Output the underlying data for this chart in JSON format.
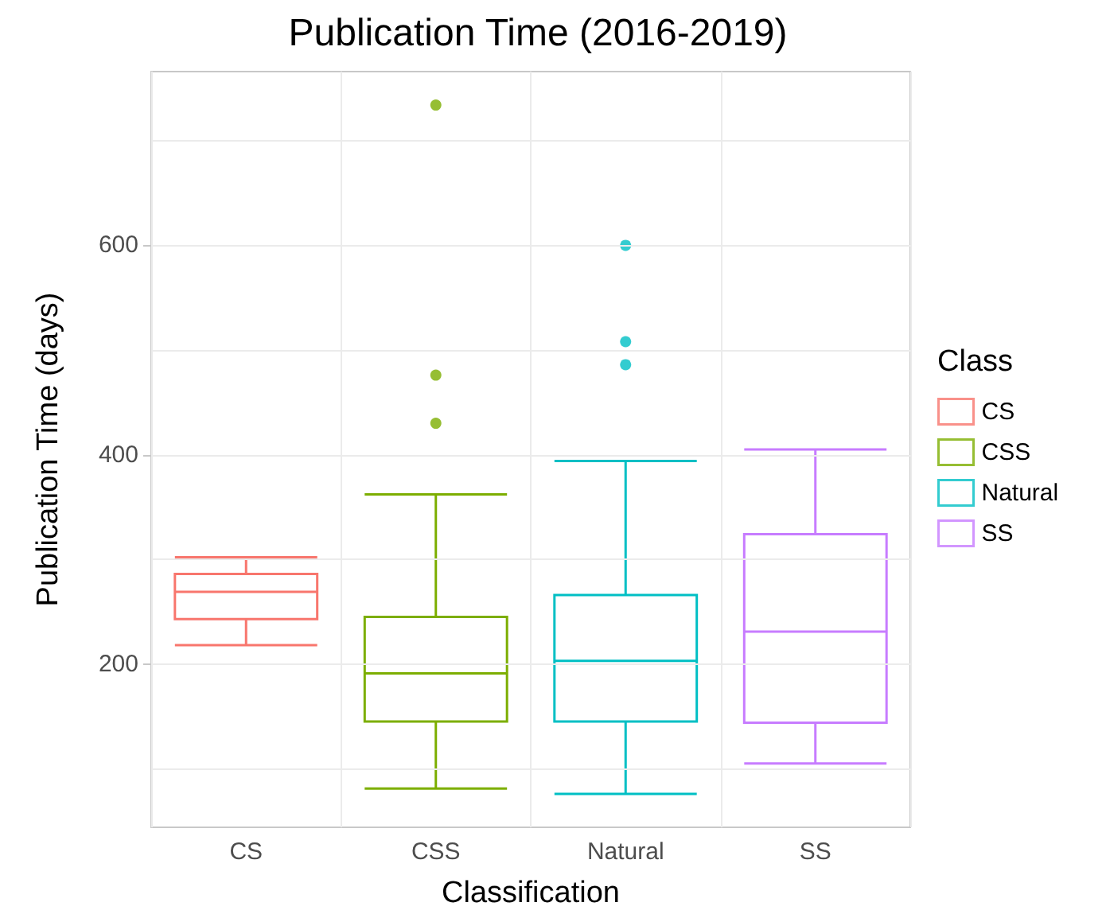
{
  "chart_data": {
    "type": "box",
    "title": "Publication Time (2016-2019)",
    "xlabel": "Classification",
    "ylabel": "Publication Time (days)",
    "legend_title": "Class",
    "categories": [
      "CS",
      "CSS",
      "Natural",
      "SS"
    ],
    "series": [
      {
        "name": "CS",
        "color": "#f8766d",
        "boxes": [
          {
            "low": 218,
            "q1": 243,
            "median": 269,
            "q3": 286,
            "high": 302
          },
          null,
          null,
          null
        ]
      },
      {
        "name": "CSS",
        "color": "#7cae00",
        "boxes": [
          null,
          {
            "low": 81,
            "q1": 145,
            "median": 191,
            "q3": 245,
            "high": 362,
            "outliers": [
              734,
              476,
              430
            ]
          },
          null,
          null
        ]
      },
      {
        "name": "Natural",
        "color": "#00bfc4",
        "boxes": [
          null,
          null,
          {
            "low": 76,
            "q1": 145,
            "median": 203,
            "q3": 266,
            "high": 394,
            "outliers": [
              600,
              508,
              486
            ]
          },
          null
        ]
      },
      {
        "name": "SS",
        "color": "#c77cff",
        "boxes": [
          null,
          null,
          null,
          {
            "low": 105,
            "q1": 144,
            "median": 231,
            "q3": 324,
            "high": 405
          }
        ]
      }
    ],
    "ylim": [
      44,
      766
    ],
    "yticks": [
      {
        "value": 100,
        "label": null
      },
      200,
      {
        "value": 300,
        "label": null
      },
      400,
      {
        "value": 500,
        "label": null
      },
      600,
      {
        "value": 700,
        "label": null
      }
    ],
    "grid": true,
    "legend": "right",
    "marker": "circle"
  }
}
